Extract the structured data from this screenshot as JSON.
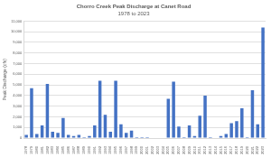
{
  "chart_data": {
    "type": "bar",
    "title": "Chorro Creek Peak Discharge at Canet Road",
    "subtitle": "1978 to 2023",
    "y_label": "Peak Discharge (cfs)",
    "categories": [
      "1978",
      "1979",
      "1980",
      "1981",
      "1982",
      "1983",
      "1984",
      "1985",
      "1986",
      "1987",
      "1988",
      "1989",
      "1990",
      "1991",
      "1992",
      "1993",
      "1994",
      "1995",
      "1996",
      "1997",
      "1998",
      "1999",
      "2000",
      "2001",
      "2002",
      "2003",
      "2004",
      "2005",
      "2006",
      "2007",
      "2008",
      "2009",
      "2010",
      "2011",
      "2012",
      "2013",
      "2014",
      "2015",
      "2016",
      "2017",
      "2018",
      "2019",
      "2020",
      "2021",
      "2022",
      "2023"
    ],
    "values": [
      300,
      4700,
      400,
      1200,
      5100,
      600,
      500,
      1900,
      300,
      200,
      300,
      100,
      200,
      1200,
      5400,
      2200,
      600,
      5400,
      1300,
      500,
      700,
      100,
      100,
      100,
      50,
      50,
      50,
      3700,
      5300,
      1100,
      100,
      1200,
      200,
      2100,
      4000,
      100,
      50,
      200,
      400,
      1400,
      1600,
      2800,
      100,
      4500,
      1300,
      10400
    ],
    "color": "#4472c4",
    "ylim": [
      0,
      11000
    ],
    "yticks": [
      0,
      {
        "value": 1000,
        "label": "1,000"
      },
      {
        "value": 2000,
        "label": "2,000"
      },
      {
        "value": 3000,
        "label": "3,000"
      },
      {
        "value": 4000,
        "label": "4,000"
      },
      {
        "value": 5000,
        "label": "5,000"
      },
      {
        "value": 6000,
        "label": "6,000"
      },
      {
        "value": 7000,
        "label": "7,000"
      },
      {
        "value": 8000,
        "label": "8,000"
      },
      {
        "value": 9000,
        "label": "9,000"
      },
      {
        "value": 10000,
        "label": "10,000"
      },
      {
        "value": 11000,
        "label": "11,000"
      }
    ],
    "grid": true
  }
}
